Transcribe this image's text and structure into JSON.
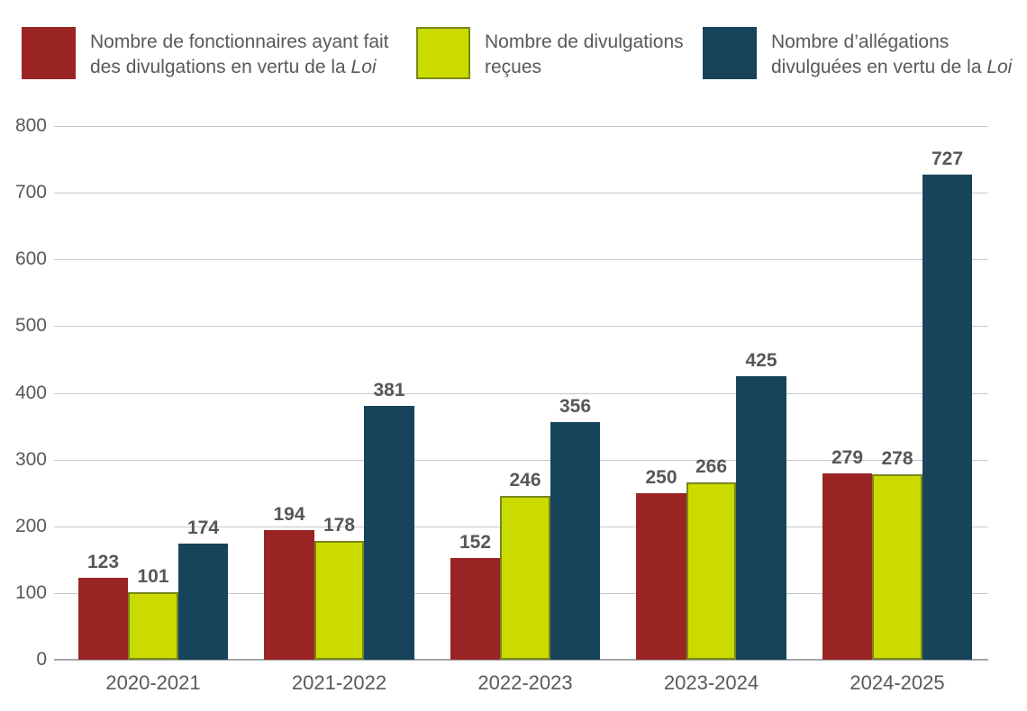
{
  "colors": {
    "series_red": "#9A2423",
    "series_green": "#CBDB00",
    "series_green_border": "#77871B",
    "series_teal": "#17445A",
    "text_gray": "#595959",
    "value_label_gray": "#575757",
    "gridline_gray": "#C5C8CA",
    "axis_line_gray": "#A3A7AA",
    "background": "#FFFFFF"
  },
  "legend": {
    "items": [
      {
        "line1": "Nombre de fonctionnaires ayant fait",
        "line2_prefix": "des divulgations en vertu de la ",
        "line2_italic": "Loi"
      },
      {
        "line1": "Nombre de divulgations",
        "line2_prefix": "reçues",
        "line2_italic": ""
      },
      {
        "line1": "Nombre d’allégations",
        "line2_prefix": "divulguées en vertu de la ",
        "line2_italic": "Loi"
      }
    ]
  },
  "chart_data": {
    "type": "bar",
    "categories": [
      "2020-2021",
      "2021-2022",
      "2022-2023",
      "2023-2024",
      "2024-2025"
    ],
    "series": [
      {
        "name": "Nombre de fonctionnaires ayant fait des divulgations en vertu de la Loi",
        "color": "#9A2423",
        "values": [
          123,
          194,
          152,
          250,
          279
        ]
      },
      {
        "name": "Nombre de divulgations reçues",
        "color": "#CBDB00",
        "border_color": "#77871B",
        "values": [
          101,
          178,
          246,
          266,
          278
        ]
      },
      {
        "name": "Nombre d’allégations divulguées en vertu de la Loi",
        "color": "#17445A",
        "values": [
          174,
          381,
          356,
          425,
          727
        ]
      }
    ],
    "title": "",
    "xlabel": "",
    "ylabel": "",
    "ylim": [
      0,
      800
    ],
    "ytick_step": 100,
    "ytick_labels": [
      "0",
      "100",
      "200",
      "300",
      "400",
      "500",
      "600",
      "700",
      "800"
    ],
    "grid": true,
    "data_labels": true,
    "legend_position": "top"
  }
}
